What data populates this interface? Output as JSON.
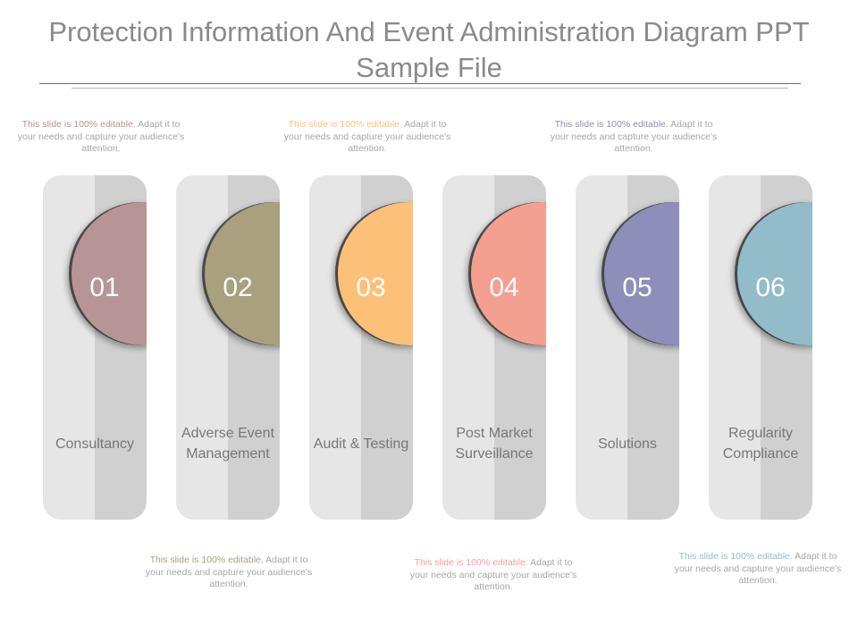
{
  "title": "Protection Information And Event Administration Diagram PPT Sample File",
  "steps": [
    {
      "number": "01",
      "label": "Consultancy",
      "color": "#b79596"
    },
    {
      "number": "02",
      "label": "Adverse Event Management",
      "color": "#a8a07e"
    },
    {
      "number": "03",
      "label": "Audit & Testing",
      "color": "#fcc078"
    },
    {
      "number": "04",
      "label": "Post Market Surveillance",
      "color": "#f3a091"
    },
    {
      "number": "05",
      "label": "Solutions",
      "color": "#8f8eba"
    },
    {
      "number": "06",
      "label": "Regularity Compliance",
      "color": "#93bccb"
    }
  ],
  "notes": [
    {
      "highlight": "This slide is 100% editable.",
      "rest": " Adapt it to your needs and capture your audience's attention.",
      "color": "#b79596"
    },
    {
      "highlight": "This slide is 100% editable.",
      "rest": " Adapt it to your needs and capture your audience's attention.",
      "color": "#a8a07e"
    },
    {
      "highlight": "This slide is 100% editable.",
      "rest": " Adapt it to your needs and capture your audience's attention.",
      "color": "#fcc078"
    },
    {
      "highlight": "This slide is 100% editable.",
      "rest": " Adapt it to your needs and capture your audience's attention.",
      "color": "#f3a091"
    },
    {
      "highlight": "This slide is 100% editable.",
      "rest": " Adapt it to your needs and capture your audience's attention.",
      "color": "#8f8eba"
    },
    {
      "highlight": "This slide is 100% editable.",
      "rest": " Adapt it to your needs and capture your audience's attention.",
      "color": "#93bccb"
    }
  ]
}
